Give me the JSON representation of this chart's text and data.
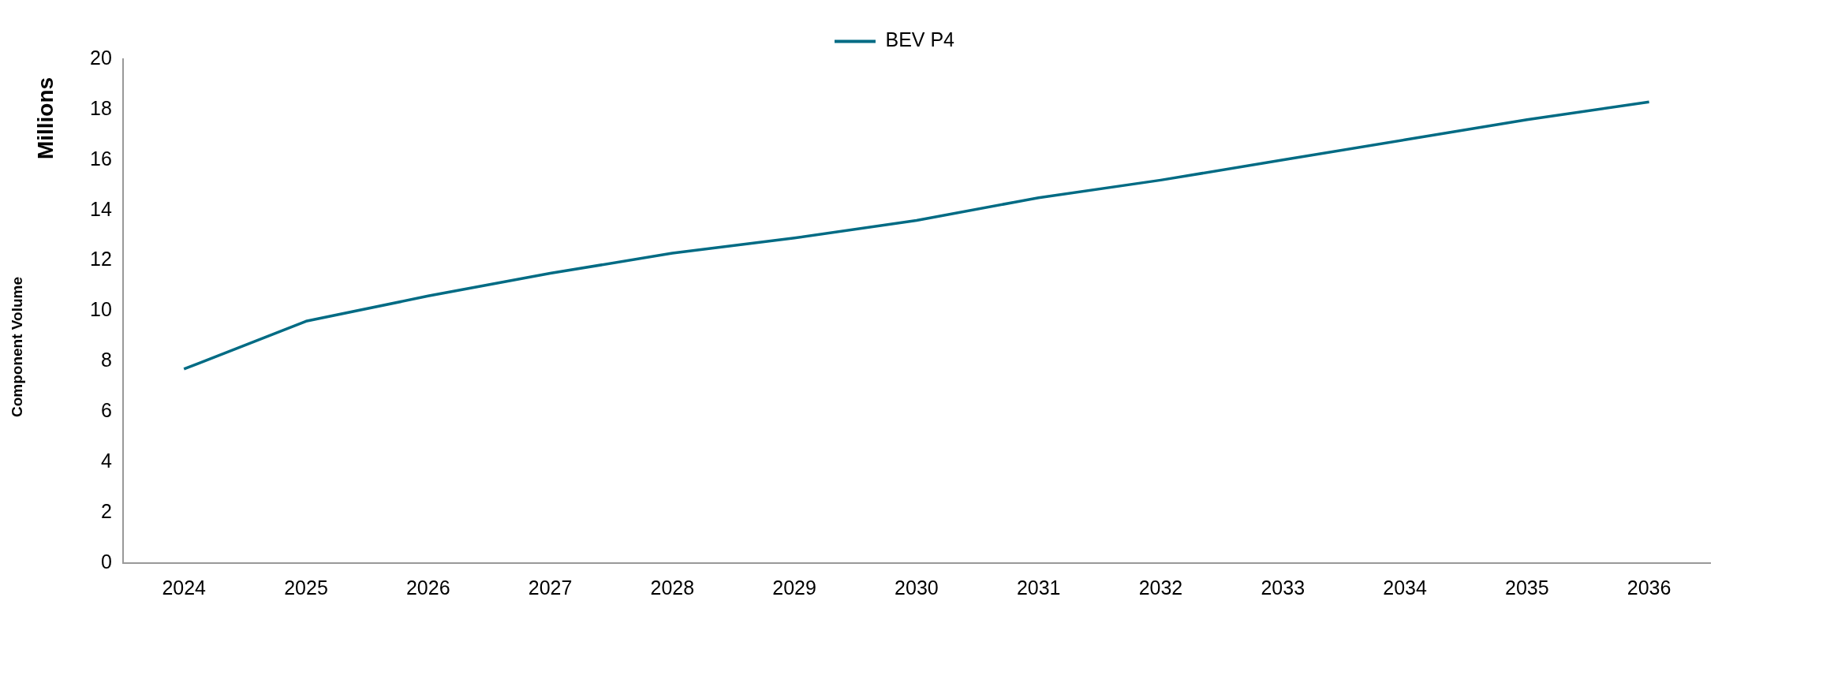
{
  "chart_data": {
    "type": "line",
    "categories": [
      "2024",
      "2025",
      "2026",
      "2027",
      "2028",
      "2029",
      "2030",
      "2031",
      "2032",
      "2033",
      "2034",
      "2035",
      "2036"
    ],
    "series": [
      {
        "name": "BEV P4",
        "color": "#006b84",
        "values": [
          7.7,
          9.6,
          10.6,
          11.5,
          12.3,
          12.9,
          13.6,
          14.5,
          15.2,
          16.0,
          16.8,
          17.6,
          18.3
        ]
      }
    ],
    "ylabel": "Component Volume",
    "annotations": [
      "Millions"
    ],
    "ylim": [
      0,
      20
    ],
    "yticks": [
      0,
      2,
      4,
      6,
      8,
      10,
      12,
      14,
      16,
      18,
      20
    ],
    "legend": "top",
    "grid": false,
    "marker": "none",
    "line_style": "solid"
  }
}
